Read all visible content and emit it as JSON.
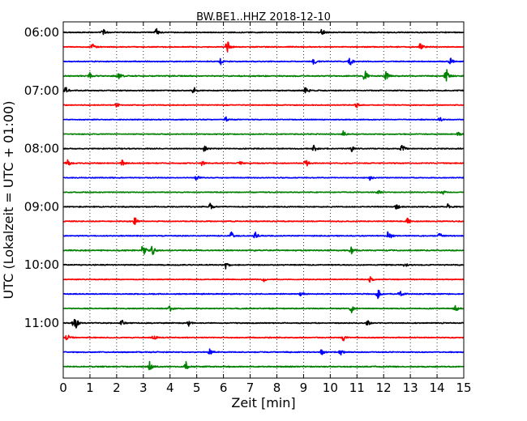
{
  "chart_data": {
    "type": "line",
    "title": "BW.BE1..HHZ 2018-12-10",
    "xlabel": "Zeit  [min]",
    "ylabel": "UTC (Lokalzeit = UTC + 01:00)",
    "xlim": [
      0,
      15
    ],
    "x_ticks": [
      0,
      1,
      2,
      3,
      4,
      5,
      6,
      7,
      8,
      9,
      10,
      11,
      12,
      13,
      14,
      15
    ],
    "x_tick_labels": [
      "0",
      "1",
      "2",
      "3",
      "4",
      "5",
      "6",
      "7",
      "8",
      "9",
      "10",
      "11",
      "12",
      "13",
      "14",
      "15"
    ],
    "x_grid": "dotted",
    "trace_interval_minutes": 15,
    "colors": [
      "#000000",
      "#ff0000",
      "#0000ff",
      "#008000"
    ],
    "y_tick_labels": [
      {
        "label": "06:00",
        "trace_index": 0
      },
      {
        "label": "07:00",
        "trace_index": 4
      },
      {
        "label": "08:00",
        "trace_index": 8
      },
      {
        "label": "09:00",
        "trace_index": 12
      },
      {
        "label": "10:00",
        "trace_index": 16
      },
      {
        "label": "11:00",
        "trace_index": 20
      }
    ],
    "series": [
      {
        "start": "06:00",
        "color": "#000000",
        "noise": 0.35,
        "events": [
          [
            1.5,
            1.4
          ],
          [
            3.5,
            1.2
          ],
          [
            9.7,
            1.3
          ]
        ]
      },
      {
        "start": "06:15",
        "color": "#ff0000",
        "noise": 0.35,
        "events": [
          [
            1.1,
            1.2
          ],
          [
            6.15,
            2.6
          ],
          [
            13.4,
            1.8
          ]
        ]
      },
      {
        "start": "06:30",
        "color": "#0000ff",
        "noise": 0.35,
        "events": [
          [
            5.9,
            1.3
          ],
          [
            9.4,
            1.1
          ],
          [
            10.75,
            1.8
          ],
          [
            14.5,
            1.3
          ]
        ]
      },
      {
        "start": "06:45",
        "color": "#008000",
        "noise": 0.4,
        "events": [
          [
            1.0,
            1.0
          ],
          [
            2.1,
            1.0
          ],
          [
            11.3,
            2.2
          ],
          [
            12.1,
            2.0
          ],
          [
            14.35,
            2.8
          ]
        ]
      },
      {
        "start": "07:00",
        "color": "#000000",
        "noise": 0.35,
        "events": [
          [
            0.1,
            1.3
          ],
          [
            4.9,
            1.2
          ],
          [
            9.1,
            1.6
          ]
        ]
      },
      {
        "start": "07:15",
        "color": "#ff0000",
        "noise": 0.3,
        "events": [
          [
            2.0,
            0.9
          ],
          [
            11.0,
            0.9
          ]
        ]
      },
      {
        "start": "07:30",
        "color": "#0000ff",
        "noise": 0.3,
        "events": [
          [
            6.1,
            0.9
          ],
          [
            14.1,
            0.9
          ]
        ]
      },
      {
        "start": "07:45",
        "color": "#008000",
        "noise": 0.3,
        "events": [
          [
            10.5,
            1.2
          ],
          [
            14.8,
            1.0
          ]
        ]
      },
      {
        "start": "08:00",
        "color": "#000000",
        "noise": 0.35,
        "events": [
          [
            5.3,
            1.1
          ],
          [
            9.4,
            1.3
          ],
          [
            10.8,
            1.0
          ],
          [
            12.7,
            1.4
          ]
        ]
      },
      {
        "start": "08:15",
        "color": "#ff0000",
        "noise": 0.35,
        "events": [
          [
            0.15,
            1.6
          ],
          [
            2.2,
            1.2
          ],
          [
            5.2,
            1.0
          ],
          [
            6.6,
            1.3
          ],
          [
            9.1,
            1.4
          ]
        ]
      },
      {
        "start": "08:30",
        "color": "#0000ff",
        "noise": 0.3,
        "events": [
          [
            5.0,
            1.0
          ],
          [
            11.5,
            0.9
          ]
        ]
      },
      {
        "start": "08:45",
        "color": "#008000",
        "noise": 0.3,
        "events": [
          [
            11.8,
            1.2
          ],
          [
            14.2,
            0.9
          ]
        ]
      },
      {
        "start": "09:00",
        "color": "#000000",
        "noise": 0.35,
        "events": [
          [
            5.5,
            1.3
          ],
          [
            12.5,
            1.0
          ],
          [
            14.4,
            0.9
          ]
        ]
      },
      {
        "start": "09:15",
        "color": "#ff0000",
        "noise": 0.35,
        "events": [
          [
            2.7,
            1.4
          ],
          [
            12.9,
            1.2
          ]
        ]
      },
      {
        "start": "09:30",
        "color": "#0000ff",
        "noise": 0.35,
        "events": [
          [
            6.3,
            1.3
          ],
          [
            7.2,
            1.4
          ],
          [
            12.2,
            2.6
          ],
          [
            14.1,
            1.1
          ]
        ]
      },
      {
        "start": "09:45",
        "color": "#008000",
        "noise": 0.4,
        "events": [
          [
            3.0,
            2.4
          ],
          [
            3.35,
            1.8
          ],
          [
            10.8,
            1.4
          ]
        ]
      },
      {
        "start": "10:00",
        "color": "#000000",
        "noise": 0.35,
        "events": [
          [
            6.1,
            1.3
          ],
          [
            12.8,
            0.9
          ]
        ]
      },
      {
        "start": "10:15",
        "color": "#ff0000",
        "noise": 0.3,
        "events": [
          [
            7.5,
            0.9
          ],
          [
            11.5,
            0.9
          ]
        ]
      },
      {
        "start": "10:30",
        "color": "#0000ff",
        "noise": 0.35,
        "events": [
          [
            8.9,
            1.3
          ],
          [
            11.8,
            1.7
          ],
          [
            12.6,
            1.2
          ]
        ]
      },
      {
        "start": "10:45",
        "color": "#008000",
        "noise": 0.35,
        "events": [
          [
            4.0,
            1.0
          ],
          [
            10.8,
            1.3
          ],
          [
            14.7,
            1.2
          ]
        ]
      },
      {
        "start": "11:00",
        "color": "#000000",
        "noise": 0.35,
        "events": [
          [
            0.42,
            4.5
          ],
          [
            2.2,
            1.1
          ],
          [
            4.7,
            1.0
          ],
          [
            11.4,
            1.0
          ]
        ]
      },
      {
        "start": "11:15",
        "color": "#ff0000",
        "noise": 0.35,
        "events": [
          [
            0.15,
            1.5
          ],
          [
            3.4,
            1.3
          ],
          [
            10.5,
            1.2
          ]
        ]
      },
      {
        "start": "11:30",
        "color": "#0000ff",
        "noise": 0.35,
        "events": [
          [
            5.5,
            1.2
          ],
          [
            9.7,
            1.3
          ],
          [
            10.4,
            1.2
          ]
        ]
      },
      {
        "start": "11:45",
        "color": "#008000",
        "noise": 0.4,
        "events": [
          [
            3.25,
            2.0
          ],
          [
            4.6,
            1.7
          ]
        ]
      }
    ]
  }
}
